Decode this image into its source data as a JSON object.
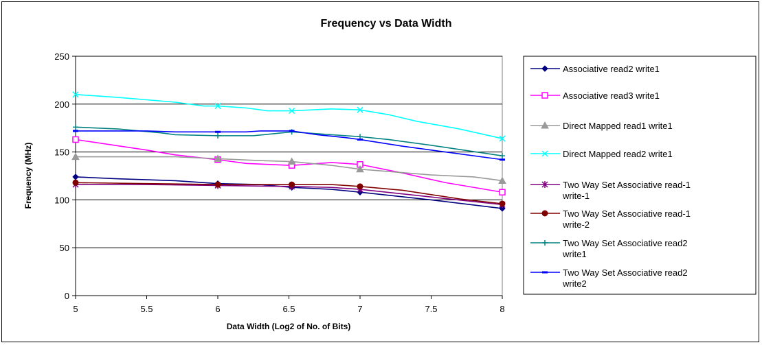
{
  "chart_data": {
    "type": "line",
    "title": "Frequency vs Data Width",
    "xlabel": "Data Width (Log2 of No. of Bits)",
    "ylabel": "Frequency (MHz)",
    "xlim": [
      5,
      8
    ],
    "ylim": [
      0,
      250
    ],
    "xticks": [
      "5",
      "5.5",
      "6",
      "6.5",
      "7",
      "7.5",
      "8"
    ],
    "xtick_values": [
      5,
      5.5,
      6,
      6.5,
      7,
      7.5,
      8
    ],
    "yticks": [
      "0",
      "50",
      "100",
      "150",
      "200",
      "250"
    ],
    "ytick_values": [
      0,
      50,
      100,
      150,
      200,
      250
    ],
    "grid": "horizontal",
    "legend_position": "right",
    "series": [
      {
        "name": "Associative read2 write1",
        "color": "#000080",
        "marker": "diamond",
        "x": [
          5,
          6,
          6.52,
          7,
          8
        ],
        "y": [
          124,
          117,
          113,
          108,
          91
        ],
        "path": [
          [
            5,
            124
          ],
          [
            5.3,
            122
          ],
          [
            5.7,
            120
          ],
          [
            6,
            117
          ],
          [
            6.3,
            116
          ],
          [
            6.52,
            113
          ],
          [
            6.8,
            111
          ],
          [
            7,
            108
          ],
          [
            7.5,
            100
          ],
          [
            8,
            91
          ]
        ]
      },
      {
        "name": "Associative read3 write1",
        "color": "#ff00ff",
        "marker": "square",
        "x": [
          5,
          6,
          6.52,
          7,
          8
        ],
        "y": [
          163,
          142,
          136,
          137,
          108
        ],
        "path": [
          [
            5,
            163
          ],
          [
            5.5,
            152
          ],
          [
            5.7,
            147
          ],
          [
            6,
            142
          ],
          [
            6.2,
            138
          ],
          [
            6.52,
            136
          ],
          [
            6.8,
            139
          ],
          [
            7,
            137
          ],
          [
            7.3,
            128
          ],
          [
            7.6,
            118
          ],
          [
            8,
            108
          ]
        ]
      },
      {
        "name": "Direct Mapped read1 write1",
        "color": "#999999",
        "marker": "triangle",
        "x": [
          5,
          6,
          6.52,
          7,
          8
        ],
        "y": [
          145,
          143,
          140,
          132,
          120
        ],
        "path": [
          [
            5,
            145
          ],
          [
            5.7,
            145
          ],
          [
            6,
            143
          ],
          [
            6.3,
            141
          ],
          [
            6.52,
            140
          ],
          [
            6.8,
            136
          ],
          [
            7,
            132
          ],
          [
            7.5,
            126
          ],
          [
            7.8,
            124
          ],
          [
            8,
            120
          ]
        ]
      },
      {
        "name": "Direct Mapped read2 write1",
        "color": "#00ffff",
        "marker": "x",
        "x": [
          5,
          6,
          6.52,
          7,
          8
        ],
        "y": [
          210,
          198,
          193,
          194,
          164
        ],
        "path": [
          [
            5,
            210
          ],
          [
            5.3,
            207
          ],
          [
            5.7,
            202
          ],
          [
            5.9,
            198
          ],
          [
            6,
            198
          ],
          [
            6.2,
            196
          ],
          [
            6.35,
            193
          ],
          [
            6.52,
            193
          ],
          [
            6.8,
            195
          ],
          [
            7,
            194
          ],
          [
            7.2,
            189
          ],
          [
            7.4,
            182
          ],
          [
            7.7,
            174
          ],
          [
            8,
            164
          ]
        ]
      },
      {
        "name": "Two Way Set Associative read-1 write-1",
        "color": "#800080",
        "marker": "asterisk",
        "x": [
          5,
          6,
          6.52,
          7,
          8
        ],
        "y": [
          116,
          115,
          114,
          111,
          95
        ],
        "path": [
          [
            5,
            116
          ],
          [
            5.5,
            116
          ],
          [
            6,
            115
          ],
          [
            6.52,
            114
          ],
          [
            6.8,
            113
          ],
          [
            7,
            111
          ],
          [
            7.5,
            103
          ],
          [
            8,
            95
          ]
        ]
      },
      {
        "name": "Two Way Set Associative read-1 write-2",
        "color": "#800000",
        "marker": "circle",
        "x": [
          5,
          6,
          6.52,
          7,
          8
        ],
        "y": [
          118,
          116,
          116,
          114,
          96
        ],
        "path": [
          [
            5,
            118
          ],
          [
            5.5,
            117
          ],
          [
            6,
            116
          ],
          [
            6.52,
            116
          ],
          [
            6.8,
            116
          ],
          [
            7,
            114
          ],
          [
            7.3,
            110
          ],
          [
            7.7,
            101
          ],
          [
            8,
            96
          ]
        ]
      },
      {
        "name": "Two Way Set Associative read2 write1",
        "color": "#008080",
        "marker": "plus",
        "x": [
          5,
          6,
          6.52,
          7,
          8
        ],
        "y": [
          176,
          167,
          171,
          166,
          146
        ],
        "path": [
          [
            5,
            176
          ],
          [
            5.3,
            174
          ],
          [
            5.6,
            170
          ],
          [
            5.7,
            168
          ],
          [
            6,
            167
          ],
          [
            6.25,
            167
          ],
          [
            6.52,
            171
          ],
          [
            6.8,
            168
          ],
          [
            7,
            166
          ],
          [
            7.2,
            163
          ],
          [
            7.5,
            157
          ],
          [
            8,
            146
          ]
        ]
      },
      {
        "name": "Two Way Set Associative read2 write2",
        "color": "#0000ff",
        "marker": "dash",
        "x": [
          5,
          6,
          6.52,
          7,
          8
        ],
        "y": [
          172,
          171,
          172,
          163,
          142
        ],
        "path": [
          [
            5,
            172
          ],
          [
            5.5,
            172
          ],
          [
            5.7,
            171
          ],
          [
            6,
            171
          ],
          [
            6.2,
            171
          ],
          [
            6.3,
            172
          ],
          [
            6.52,
            172
          ],
          [
            6.7,
            168
          ],
          [
            6.9,
            165
          ],
          [
            7,
            163
          ],
          [
            7.3,
            156
          ],
          [
            7.6,
            150
          ],
          [
            8,
            142
          ]
        ]
      }
    ]
  }
}
